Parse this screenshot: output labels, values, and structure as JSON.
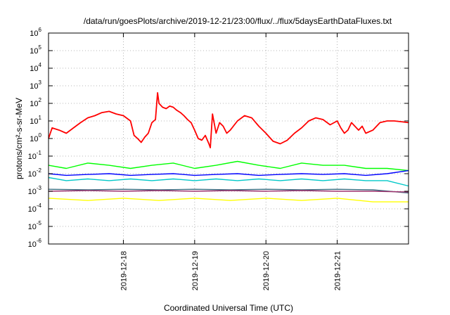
{
  "chart_data": {
    "type": "line",
    "title": "/data/run/goesPlots/archive/2019-12-21/23:00/flux/../flux/5daysEarthDataFluxes.txt",
    "xlabel": "Coordinated Universal Time (UTC)",
    "ylabel": "protons/cm²-s-sr-MeV",
    "yscale": "log",
    "ylim": [
      1e-06,
      1000000.0
    ],
    "xlim_days": [
      16.95,
      22.0
    ],
    "grid": true,
    "legend": "none",
    "yticks": [
      {
        "base": "10",
        "exp": "-6",
        "value": -6
      },
      {
        "base": "10",
        "exp": "-5",
        "value": -5
      },
      {
        "base": "10",
        "exp": "-4",
        "value": -4
      },
      {
        "base": "10",
        "exp": "-3",
        "value": -3
      },
      {
        "base": "10",
        "exp": "-2",
        "value": -2
      },
      {
        "base": "10",
        "exp": "-1",
        "value": -1
      },
      {
        "base": "10",
        "exp": "0",
        "value": 0
      },
      {
        "base": "10",
        "exp": "1",
        "value": 1
      },
      {
        "base": "10",
        "exp": "2",
        "value": 2
      },
      {
        "base": "10",
        "exp": "3",
        "value": 3
      },
      {
        "base": "10",
        "exp": "4",
        "value": 4
      },
      {
        "base": "10",
        "exp": "5",
        "value": 5
      },
      {
        "base": "10",
        "exp": "6",
        "value": 6
      }
    ],
    "xticks": [
      {
        "label": "2019-12-18",
        "day": 18
      },
      {
        "label": "2019-12-19",
        "day": 19
      },
      {
        "label": "2019-12-20",
        "day": 20
      },
      {
        "label": "2019-12-21",
        "day": 21
      }
    ],
    "series": [
      {
        "color": "#ff0000",
        "x": [
          16.95,
          17.0,
          17.1,
          17.2,
          17.3,
          17.4,
          17.5,
          17.6,
          17.7,
          17.8,
          17.9,
          18.0,
          18.1,
          18.15,
          18.2,
          18.25,
          18.3,
          18.35,
          18.4,
          18.45,
          18.48,
          18.5,
          18.55,
          18.6,
          18.65,
          18.7,
          18.75,
          18.8,
          18.85,
          18.9,
          18.95,
          19.0,
          19.05,
          19.1,
          19.15,
          19.2,
          19.22,
          19.25,
          19.3,
          19.35,
          19.4,
          19.45,
          19.5,
          19.6,
          19.7,
          19.8,
          19.9,
          20.0,
          20.1,
          20.2,
          20.3,
          20.4,
          20.5,
          20.6,
          20.7,
          20.8,
          20.9,
          21.0,
          21.05,
          21.1,
          21.15,
          21.2,
          21.3,
          21.35,
          21.4,
          21.5,
          21.6,
          21.7,
          21.8,
          21.9,
          22.0
        ],
        "y": [
          1.0,
          4.0,
          3.0,
          2.0,
          4.0,
          8.0,
          15.0,
          20.0,
          30.0,
          35.0,
          25.0,
          20.0,
          10.0,
          1.5,
          1.0,
          0.6,
          1.2,
          2.0,
          8.0,
          12.0,
          400.0,
          100.0,
          60.0,
          50.0,
          70.0,
          60.0,
          40.0,
          30.0,
          20.0,
          12.0,
          8.0,
          3.0,
          1.0,
          0.8,
          1.5,
          0.5,
          0.3,
          25.0,
          2.0,
          8.0,
          5.0,
          2.0,
          3.0,
          10.0,
          20.0,
          15.0,
          5.0,
          2.0,
          0.7,
          0.5,
          0.8,
          2.0,
          4.0,
          10.0,
          15.0,
          12.0,
          6.0,
          10.0,
          4.0,
          2.0,
          3.0,
          8.0,
          3.0,
          5.0,
          2.0,
          3.0,
          8.0,
          10.0,
          10.0,
          9.0,
          8.0
        ]
      },
      {
        "color": "#00ff00",
        "x": [
          16.95,
          17.2,
          17.5,
          17.8,
          18.1,
          18.4,
          18.7,
          19.0,
          19.3,
          19.6,
          19.9,
          20.2,
          20.5,
          20.8,
          21.1,
          21.4,
          21.7,
          22.0
        ],
        "y": [
          0.03,
          0.02,
          0.04,
          0.03,
          0.02,
          0.03,
          0.04,
          0.02,
          0.03,
          0.05,
          0.03,
          0.02,
          0.04,
          0.03,
          0.03,
          0.02,
          0.02,
          0.015
        ]
      },
      {
        "color": "#00c8c8",
        "x": [
          16.95,
          17.2,
          17.5,
          17.8,
          18.1,
          18.4,
          18.7,
          19.0,
          19.3,
          19.6,
          19.9,
          20.2,
          20.5,
          20.8,
          21.1,
          21.4,
          21.7,
          22.0
        ],
        "y": [
          0.006,
          0.004,
          0.005,
          0.004,
          0.005,
          0.004,
          0.005,
          0.004,
          0.005,
          0.004,
          0.005,
          0.004,
          0.005,
          0.004,
          0.005,
          0.004,
          0.004,
          0.002
        ]
      },
      {
        "color": "#0000ff",
        "x": [
          16.95,
          17.2,
          17.5,
          17.8,
          18.1,
          18.4,
          18.7,
          19.0,
          19.3,
          19.6,
          19.9,
          20.2,
          20.5,
          20.8,
          21.1,
          21.4,
          21.7,
          22.0
        ],
        "y": [
          0.01,
          0.008,
          0.009,
          0.01,
          0.008,
          0.009,
          0.01,
          0.008,
          0.009,
          0.01,
          0.008,
          0.009,
          0.01,
          0.009,
          0.01,
          0.008,
          0.01,
          0.015
        ]
      },
      {
        "color": "#3c6e82",
        "x": [
          16.95,
          17.5,
          18.0,
          18.5,
          19.0,
          19.5,
          20.0,
          20.5,
          21.0,
          21.5,
          22.0
        ],
        "y": [
          0.0013,
          0.0012,
          0.0013,
          0.0012,
          0.0013,
          0.0012,
          0.0013,
          0.0012,
          0.0013,
          0.0012,
          0.0008
        ]
      },
      {
        "color": "#a0326e",
        "x": [
          16.95,
          17.5,
          18.0,
          18.5,
          19.0,
          19.5,
          20.0,
          20.5,
          21.0,
          21.5,
          22.0
        ],
        "y": [
          0.001,
          0.0011,
          0.001,
          0.0011,
          0.001,
          0.0011,
          0.001,
          0.0011,
          0.001,
          0.001,
          0.0009
        ]
      },
      {
        "color": "#ffff00",
        "x": [
          16.95,
          17.5,
          18.0,
          18.5,
          19.0,
          19.5,
          20.0,
          20.5,
          21.0,
          21.5,
          22.0
        ],
        "y": [
          0.0004,
          0.0003,
          0.0004,
          0.0003,
          0.0004,
          0.0003,
          0.0004,
          0.0003,
          0.0004,
          0.00025,
          0.00025
        ]
      }
    ]
  }
}
